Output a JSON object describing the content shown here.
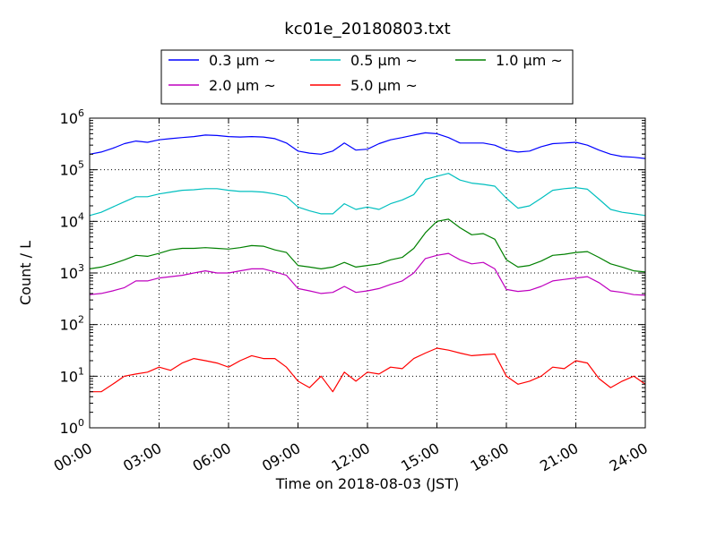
{
  "chart_data": {
    "type": "line",
    "title": "kc01e_20180803.txt",
    "xlabel": "Time on 2018-08-03 (JST)",
    "ylabel": "Count / L",
    "yscale": "log",
    "ylim": [
      1,
      1000000
    ],
    "xlim": [
      0,
      24
    ],
    "grid": true,
    "legend_position": "top-center, outside plot",
    "x_tick_labels": [
      "00:00",
      "03:00",
      "06:00",
      "09:00",
      "12:00",
      "15:00",
      "18:00",
      "21:00",
      "24:00"
    ],
    "y_tick_labels": [
      {
        "base": "10",
        "exp": "0"
      },
      {
        "base": "10",
        "exp": "1"
      },
      {
        "base": "10",
        "exp": "2"
      },
      {
        "base": "10",
        "exp": "3"
      },
      {
        "base": "10",
        "exp": "4"
      },
      {
        "base": "10",
        "exp": "5"
      },
      {
        "base": "10",
        "exp": "6"
      }
    ],
    "x": [
      0,
      0.5,
      1,
      1.5,
      2,
      2.5,
      3,
      3.5,
      4,
      4.5,
      5,
      5.5,
      6,
      6.5,
      7,
      7.5,
      8,
      8.5,
      9,
      9.5,
      10,
      10.5,
      11,
      11.5,
      12,
      12.5,
      13,
      13.5,
      14,
      14.5,
      15,
      15.5,
      16,
      16.5,
      17,
      17.5,
      18,
      18.5,
      19,
      19.5,
      20,
      20.5,
      21,
      21.5,
      22,
      22.5,
      23,
      23.5,
      24
    ],
    "series": [
      {
        "name": "0.3 µm ~",
        "color": "#0000ff",
        "values": [
          200000,
          220000,
          260000,
          320000,
          360000,
          340000,
          380000,
          400000,
          420000,
          440000,
          470000,
          460000,
          440000,
          430000,
          440000,
          430000,
          400000,
          330000,
          230000,
          210000,
          200000,
          230000,
          330000,
          240000,
          250000,
          320000,
          380000,
          420000,
          470000,
          520000,
          500000,
          420000,
          330000,
          330000,
          330000,
          300000,
          240000,
          220000,
          230000,
          280000,
          320000,
          330000,
          340000,
          300000,
          240000,
          200000,
          180000,
          175000,
          165000
        ]
      },
      {
        "name": "0.5 µm ~",
        "color": "#00bfbf",
        "values": [
          13000,
          15000,
          19000,
          24000,
          30000,
          30000,
          34000,
          37000,
          40000,
          41000,
          43000,
          43000,
          40000,
          38000,
          38000,
          37000,
          34000,
          30000,
          19000,
          16000,
          14000,
          14000,
          22000,
          17000,
          19000,
          17000,
          22000,
          26000,
          33000,
          65000,
          75000,
          85000,
          63000,
          55000,
          52000,
          48000,
          28000,
          18000,
          20000,
          28000,
          40000,
          43000,
          45000,
          42000,
          27000,
          17000,
          15000,
          14000,
          13000
        ]
      },
      {
        "name": "1.0 µm ~",
        "color": "#008000",
        "values": [
          1200,
          1300,
          1500,
          1800,
          2200,
          2100,
          2400,
          2800,
          3000,
          3000,
          3100,
          3000,
          2900,
          3100,
          3400,
          3300,
          2800,
          2500,
          1400,
          1300,
          1200,
          1300,
          1600,
          1300,
          1400,
          1500,
          1800,
          2000,
          3000,
          6000,
          10000,
          11000,
          7500,
          5500,
          5800,
          4500,
          1800,
          1300,
          1400,
          1700,
          2200,
          2300,
          2500,
          2600,
          2000,
          1500,
          1300,
          1100,
          1050
        ]
      },
      {
        "name": "2.0 µm ~",
        "color": "#bf00bf",
        "values": [
          380,
          400,
          450,
          520,
          700,
          700,
          800,
          850,
          900,
          1000,
          1100,
          1000,
          1000,
          1100,
          1200,
          1200,
          1050,
          900,
          500,
          450,
          400,
          420,
          550,
          420,
          450,
          500,
          600,
          700,
          1000,
          1900,
          2200,
          2400,
          1800,
          1500,
          1600,
          1200,
          480,
          440,
          460,
          550,
          700,
          750,
          800,
          850,
          650,
          450,
          420,
          380,
          370
        ]
      },
      {
        "name": "5.0 µm ~",
        "color": "#ff0000",
        "values": [
          5,
          5,
          7,
          10,
          11,
          12,
          15,
          13,
          18,
          22,
          20,
          18,
          15,
          20,
          25,
          22,
          22,
          15,
          8,
          6,
          10,
          5,
          12,
          8,
          12,
          11,
          15,
          14,
          22,
          28,
          35,
          32,
          28,
          25,
          26,
          27,
          10,
          7,
          8,
          10,
          15,
          14,
          20,
          18,
          9,
          6,
          8,
          10,
          7
        ]
      }
    ]
  }
}
